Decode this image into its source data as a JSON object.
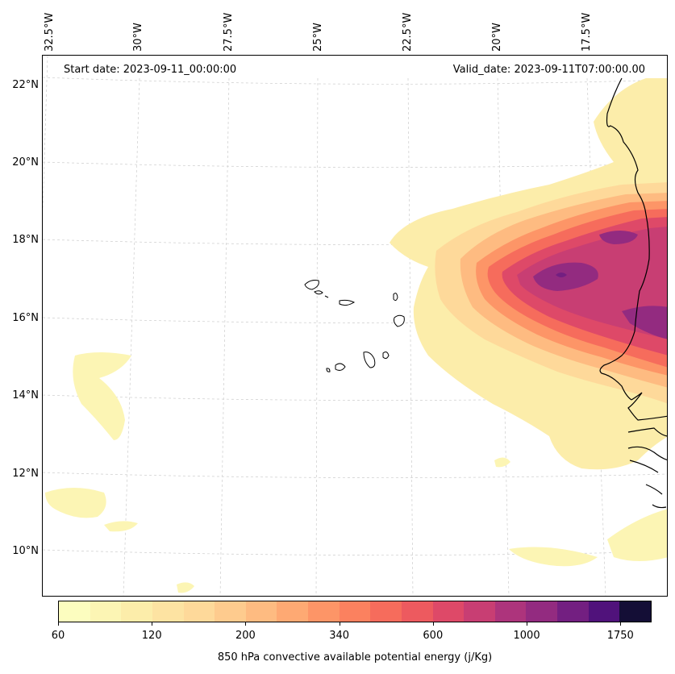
{
  "map": {
    "projection": "Lambert-like conic",
    "longitude_labels": [
      "32.5°W",
      "30°W",
      "27.5°W",
      "25°W",
      "22.5°W",
      "20°W",
      "17.5°W"
    ],
    "latitude_labels": [
      "22°N",
      "20°N",
      "18°N",
      "16°N",
      "14°N",
      "12°N",
      "10°N"
    ],
    "gridlines": true,
    "coastline_color": "#000000",
    "features": [
      "Cape Verde islands",
      "West African coast (Mauritania, Senegal, Gambia, Guinea-Bissau)"
    ]
  },
  "info": {
    "start_date": "Start date: 2023-09-11_00:00:00",
    "valid_date": "Valid_date: 2023-09-11T07:00:00.00"
  },
  "colorbar": {
    "title": "850 hPa convective available potential energy (j/Kg)",
    "tick_labels": [
      "60",
      "120",
      "200",
      "340",
      "600",
      "1000",
      "1750"
    ],
    "colors": [
      "#fcfdbf",
      "#fcf5b4",
      "#fcedaa",
      "#fde3a2",
      "#fed99a",
      "#fecb8e",
      "#febb81",
      "#fea973",
      "#fd9567",
      "#fb815f",
      "#f66c5c",
      "#ed5a5f",
      "#de4968",
      "#c83e73",
      "#ad347c",
      "#932b80",
      "#731f81",
      "#50127b",
      "#140e36"
    ]
  }
}
